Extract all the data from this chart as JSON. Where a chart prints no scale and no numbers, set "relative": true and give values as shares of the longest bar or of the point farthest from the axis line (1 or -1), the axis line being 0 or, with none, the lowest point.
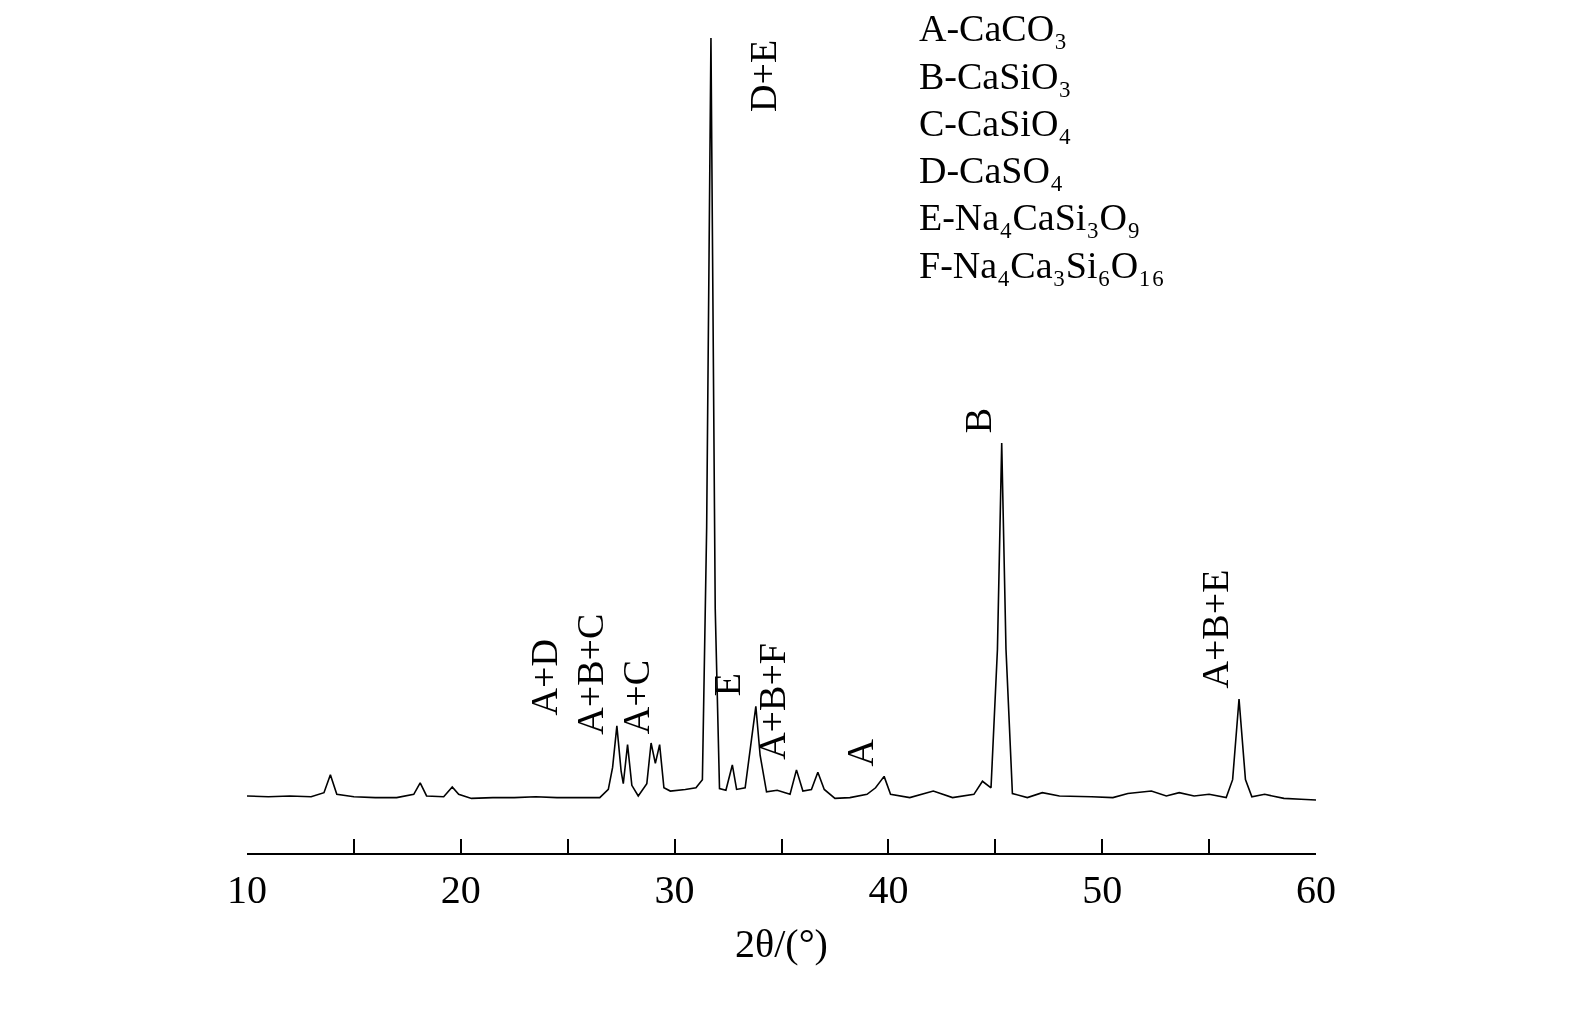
{
  "chart_data": {
    "type": "line",
    "relative": true,
    "xlabel": "2θ/(°)",
    "xlim": [
      10,
      60
    ],
    "xticks": [
      10,
      {
        "value": 15,
        "label": null
      },
      20,
      {
        "value": 25,
        "label": null
      },
      30,
      {
        "value": 35,
        "label": null
      },
      40,
      {
        "value": 45,
        "label": null
      },
      50,
      {
        "value": 55,
        "label": null
      },
      60
    ],
    "grid": false,
    "marker": "none",
    "line_style": "solid",
    "series": [
      {
        "color": "#000000",
        "x": [
          10,
          11,
          12,
          13,
          13.6,
          13.9,
          14.2,
          15,
          16,
          17,
          17.8,
          18.1,
          18.4,
          19.2,
          19.6,
          19.9,
          20.5,
          21.5,
          22.5,
          23.5,
          24.5,
          25.5,
          26.5,
          26.9,
          27.1,
          27.3,
          27.5,
          27.6,
          27.8,
          28.0,
          28.3,
          28.7,
          28.9,
          29.1,
          29.3,
          29.5,
          29.8,
          30.5,
          31.0,
          31.3,
          31.5,
          31.7,
          31.9,
          32.1,
          32.4,
          32.7,
          32.9,
          33.3,
          33.6,
          33.8,
          34.0,
          34.3,
          34.8,
          35.4,
          35.7,
          36.0,
          36.4,
          36.7,
          37.0,
          37.5,
          38.2,
          39.0,
          39.4,
          39.8,
          40.1,
          41.0,
          42.1,
          43.0,
          44.0,
          44.4,
          44.8,
          45.1,
          45.3,
          45.5,
          45.8,
          46.5,
          47.2,
          48.0,
          49.5,
          50.5,
          51.2,
          52.3,
          53.0,
          53.6,
          54.3,
          55.0,
          55.8,
          56.1,
          56.4,
          56.7,
          57.0,
          57.6,
          58.5,
          59.3,
          60
        ],
        "values": [
          0.07,
          0.069,
          0.07,
          0.069,
          0.074,
          0.096,
          0.072,
          0.069,
          0.068,
          0.068,
          0.072,
          0.086,
          0.07,
          0.069,
          0.081,
          0.072,
          0.067,
          0.068,
          0.068,
          0.069,
          0.068,
          0.068,
          0.068,
          0.078,
          0.105,
          0.156,
          0.1,
          0.085,
          0.133,
          0.083,
          0.07,
          0.085,
          0.135,
          0.11,
          0.133,
          0.08,
          0.076,
          0.078,
          0.08,
          0.09,
          0.4,
          1.0,
          0.3,
          0.079,
          0.077,
          0.108,
          0.078,
          0.08,
          0.14,
          0.18,
          0.12,
          0.075,
          0.077,
          0.072,
          0.102,
          0.076,
          0.078,
          0.099,
          0.078,
          0.067,
          0.068,
          0.072,
          0.08,
          0.094,
          0.072,
          0.068,
          0.076,
          0.068,
          0.072,
          0.088,
          0.08,
          0.25,
          0.503,
          0.25,
          0.073,
          0.068,
          0.074,
          0.07,
          0.069,
          0.068,
          0.073,
          0.076,
          0.07,
          0.074,
          0.07,
          0.072,
          0.068,
          0.09,
          0.189,
          0.09,
          0.069,
          0.072,
          0.067,
          0.066,
          0.065
        ]
      }
    ],
    "annotations": [
      {
        "text": "A+D",
        "x": 27.3,
        "y": 0.156
      },
      {
        "text": "A+B+C",
        "x": 27.8,
        "y": 0.133
      },
      {
        "text": "A+C",
        "x": 29.3,
        "y": 0.133
      },
      {
        "text": "D+E",
        "x": 31.7,
        "y": 1.0
      },
      {
        "text": "E",
        "x": 33.8,
        "y": 0.18
      },
      {
        "text": "A+B+F",
        "x": 35.7,
        "y": 0.102
      },
      {
        "text": "A",
        "x": 39.8,
        "y": 0.094
      },
      {
        "text": "B",
        "x": 45.3,
        "y": 0.503
      },
      {
        "text": "A+B+E",
        "x": 56.4,
        "y": 0.189
      },
      "A-CaCO₃",
      "B-CaSiO₃",
      "C-CaSiO₄",
      "D-CaSO₄",
      "E-Na₄CaSi₃O₉",
      "F-Na₄Ca₃Si₆O₁₆"
    ]
  }
}
